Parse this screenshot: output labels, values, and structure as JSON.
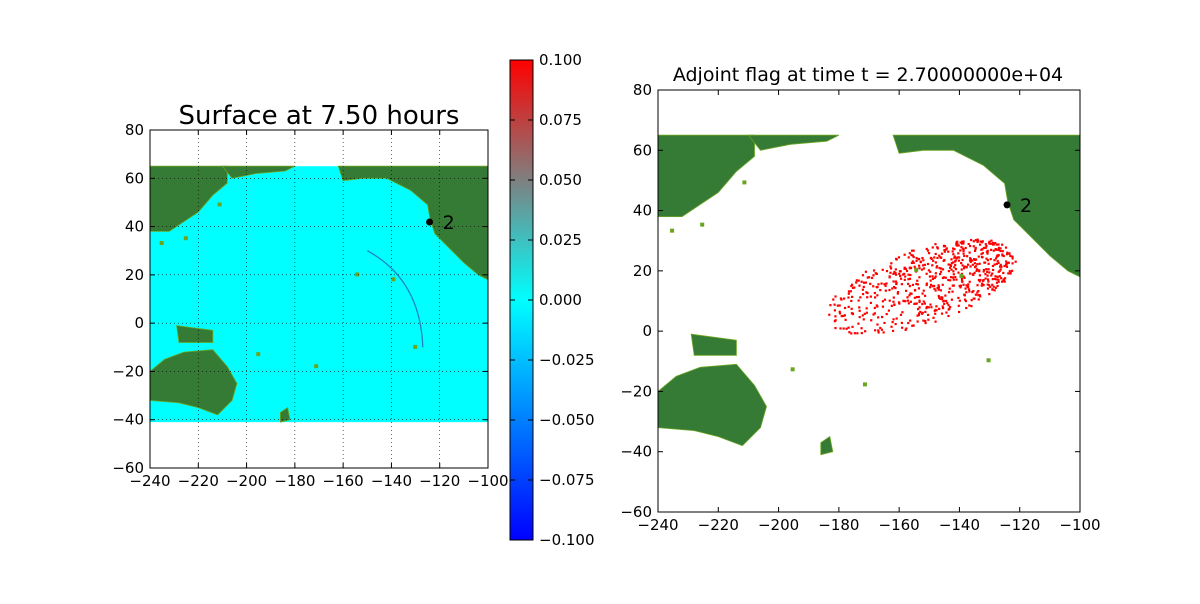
{
  "chart_data": [
    {
      "type": "heatmap",
      "title": "Surface at 7.50 hours",
      "xlabel": "",
      "ylabel": "",
      "xlim": [
        -240,
        -100
      ],
      "ylim": [
        -60,
        80
      ],
      "xticks": [
        -240,
        -220,
        -200,
        -180,
        -160,
        -140,
        -120,
        -100
      ],
      "yticks": [
        -60,
        -40,
        -20,
        0,
        20,
        40,
        60,
        80
      ],
      "grid": true,
      "ocean_value": 0.0,
      "gauge": {
        "label": "2",
        "x": -124.2,
        "y": 41.9
      },
      "colorbar": {
        "vmin": -0.1,
        "vmax": 0.1,
        "ticks": [
          "0.100",
          "0.075",
          "0.050",
          "0.025",
          "0.000",
          "−0.025",
          "−0.050",
          "−0.075",
          "−0.100"
        ],
        "colors": [
          "#0000ff",
          "#00ffff",
          "#ff0000"
        ]
      }
    },
    {
      "type": "heatmap",
      "title": "Adjoint flag at time t = 2.70000000e+04",
      "xlabel": "",
      "ylabel": "",
      "xlim": [
        -240,
        -100
      ],
      "ylim": [
        -60,
        80
      ],
      "xticks": [
        -240,
        -220,
        -200,
        -180,
        -160,
        -140,
        -120,
        -100
      ],
      "yticks": [
        -60,
        -40,
        -20,
        0,
        20,
        40,
        60,
        80
      ],
      "grid": false,
      "flag_region": {
        "lon_range": [
          -186,
          -120
        ],
        "lat_range": [
          -7,
          38
        ]
      },
      "gauge": {
        "label": "2",
        "x": -124.2,
        "y": 41.9
      }
    }
  ],
  "colors": {
    "land": "#357a35",
    "land_light": "#6aa521",
    "ocean": "#00ffff",
    "flag": "#ff0000",
    "gauge": "#000000"
  }
}
